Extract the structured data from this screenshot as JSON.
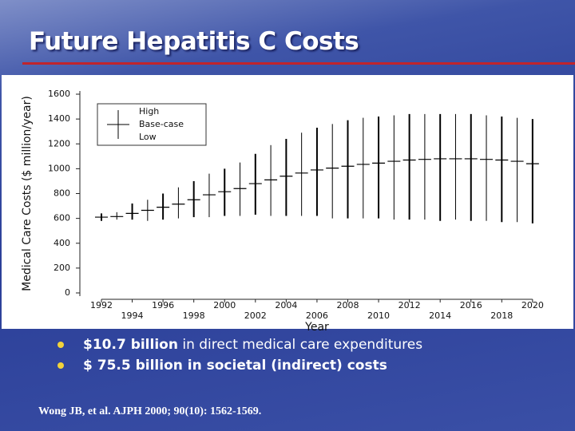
{
  "slide": {
    "title": "Future Hepatitis C Costs",
    "bullets": [
      {
        "bold": "$10.7 billion",
        "text": " in direct medical care expenditures"
      },
      {
        "bold": "$ 75.5 billion in societal (indirect) costs"
      }
    ],
    "citation": "Wong JB, et al. AJPH 2000; 90(10): 1562-1569."
  },
  "chart_data": {
    "type": "range",
    "xlabel": "Year",
    "ylabel": "Medical Care Costs ($ million/year)",
    "x": [
      1992,
      1993,
      1994,
      1995,
      1996,
      1997,
      1998,
      1999,
      2000,
      2001,
      2002,
      2003,
      2004,
      2005,
      2006,
      2007,
      2008,
      2009,
      2010,
      2011,
      2012,
      2013,
      2014,
      2015,
      2016,
      2017,
      2018,
      2019,
      2020
    ],
    "series": [
      {
        "name": "High",
        "color": "#000000",
        "values": [
          640,
          650,
          720,
          750,
          800,
          850,
          900,
          960,
          1000,
          1050,
          1120,
          1190,
          1240,
          1290,
          1330,
          1360,
          1390,
          1410,
          1420,
          1430,
          1440,
          1440,
          1440,
          1440,
          1440,
          1430,
          1420,
          1410,
          1400
        ]
      },
      {
        "name": "Base-case",
        "color": "#000000",
        "values": [
          610,
          615,
          640,
          665,
          690,
          715,
          750,
          790,
          815,
          840,
          880,
          910,
          940,
          965,
          990,
          1005,
          1020,
          1035,
          1045,
          1060,
          1070,
          1075,
          1080,
          1080,
          1080,
          1075,
          1070,
          1060,
          1040
        ]
      },
      {
        "name": "Low",
        "color": "#000000",
        "values": [
          580,
          590,
          590,
          580,
          590,
          600,
          610,
          610,
          620,
          620,
          630,
          620,
          620,
          620,
          620,
          600,
          600,
          600,
          600,
          590,
          590,
          590,
          580,
          590,
          580,
          580,
          570,
          570,
          560
        ]
      }
    ],
    "xlim": [
      1990.6,
      2021.2
    ],
    "xticks": [
      1992,
      1994,
      1996,
      1998,
      2000,
      2002,
      2004,
      2006,
      2008,
      2010,
      2012,
      2014,
      2016,
      2018,
      2020
    ],
    "ylim": [
      0,
      1600
    ],
    "yticks": [
      0,
      200,
      400,
      600,
      800,
      1000,
      1200,
      1400,
      1600
    ],
    "legend": "top-left"
  }
}
